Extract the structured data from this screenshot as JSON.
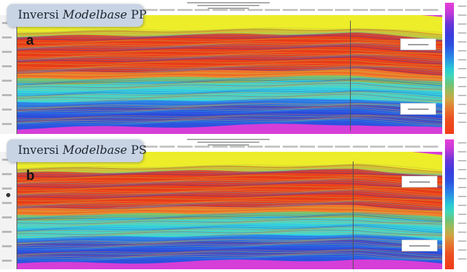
{
  "panels": [
    {
      "label_prefix": "Inversi ",
      "label_italic": "Modelbase",
      "label_suffix": " PP",
      "letter": "a"
    },
    {
      "label_prefix": "Inversi ",
      "label_italic": "Modelbase",
      "label_suffix": " PS",
      "letter": "b"
    }
  ],
  "colors": {
    "top_band": "#eded2a",
    "red_band": "#ea3a1a",
    "green_band": "#78c070",
    "cyan_band": "#38d7dc",
    "blue_band": "#2b52de",
    "magenta_base": "#d63ed8",
    "label_bg": "#c8d4e4"
  },
  "colorbar_name": "impedance-colorbar"
}
